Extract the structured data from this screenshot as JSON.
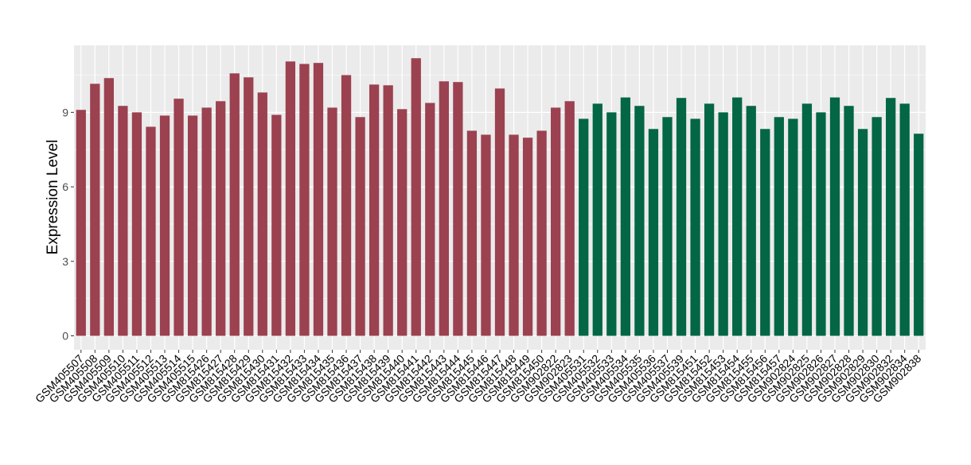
{
  "chart_data": {
    "type": "bar",
    "y_label": "Expression Level",
    "categories": [
      "GSM405507",
      "GSM405508",
      "GSM405509",
      "GSM405510",
      "GSM405511",
      "GSM405512",
      "GSM405513",
      "GSM405514",
      "GSM405515",
      "GSM815426",
      "GSM815427",
      "GSM815428",
      "GSM815429",
      "GSM815430",
      "GSM815431",
      "GSM815432",
      "GSM815433",
      "GSM815434",
      "GSM815435",
      "GSM815436",
      "GSM815437",
      "GSM815438",
      "GSM815439",
      "GSM815440",
      "GSM815441",
      "GSM815442",
      "GSM815443",
      "GSM815444",
      "GSM815445",
      "GSM815446",
      "GSM815447",
      "GSM815448",
      "GSM815449",
      "GSM815450",
      "GSM902822",
      "GSM902823",
      "GSM405531",
      "GSM405532",
      "GSM405533",
      "GSM405534",
      "GSM405535",
      "GSM405536",
      "GSM405537",
      "GSM405539",
      "GSM815451",
      "GSM815452",
      "GSM815453",
      "GSM815454",
      "GSM815455",
      "GSM815456",
      "GSM815457",
      "GSM902824",
      "GSM902825",
      "GSM902826",
      "GSM902827",
      "GSM902828",
      "GSM902829",
      "GSM902830",
      "GSM902832",
      "GSM902834",
      "GSM902838"
    ],
    "values": [
      9.1,
      10.15,
      10.38,
      9.26,
      9.0,
      8.42,
      8.87,
      9.55,
      8.87,
      9.19,
      9.45,
      10.57,
      10.41,
      9.8,
      8.9,
      11.05,
      10.95,
      10.99,
      9.19,
      10.5,
      8.81,
      10.12,
      10.09,
      9.13,
      11.18,
      9.38,
      10.25,
      10.22,
      8.26,
      8.1,
      9.96,
      8.1,
      7.98,
      8.26,
      9.19,
      9.45,
      8.74,
      9.35,
      9.0,
      9.6,
      9.26,
      8.33,
      8.81,
      9.58,
      8.74,
      9.35,
      9.0,
      9.6,
      9.26,
      8.33,
      8.81,
      8.74,
      9.35,
      9.0,
      9.6,
      9.26,
      8.33,
      8.81,
      9.58,
      9.35,
      8.14
    ],
    "colors": [
      "#9b4150",
      "#9b4150",
      "#9b4150",
      "#9b4150",
      "#9b4150",
      "#9b4150",
      "#9b4150",
      "#9b4150",
      "#9b4150",
      "#9b4150",
      "#9b4150",
      "#9b4150",
      "#9b4150",
      "#9b4150",
      "#9b4150",
      "#9b4150",
      "#9b4150",
      "#9b4150",
      "#9b4150",
      "#9b4150",
      "#9b4150",
      "#9b4150",
      "#9b4150",
      "#9b4150",
      "#9b4150",
      "#9b4150",
      "#9b4150",
      "#9b4150",
      "#9b4150",
      "#9b4150",
      "#9b4150",
      "#9b4150",
      "#9b4150",
      "#9b4150",
      "#9b4150",
      "#9b4150",
      "#036645",
      "#036645",
      "#036645",
      "#036645",
      "#036645",
      "#036645",
      "#036645",
      "#036645",
      "#036645",
      "#036645",
      "#036645",
      "#036645",
      "#036645",
      "#036645",
      "#036645",
      "#036645",
      "#036645",
      "#036645",
      "#036645",
      "#036645",
      "#036645",
      "#036645",
      "#036645",
      "#036645",
      "#036645"
    ],
    "ylim": [
      -0.56,
      11.7
    ],
    "yticks": [
      0,
      3,
      6,
      9
    ],
    "grid": true
  }
}
